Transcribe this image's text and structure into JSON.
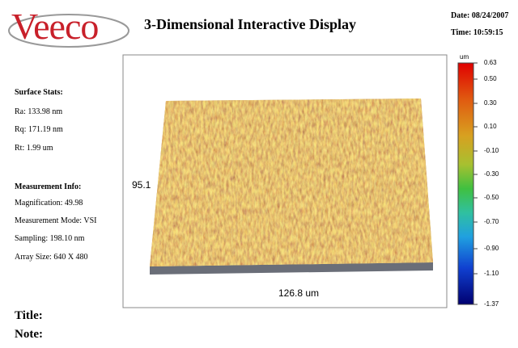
{
  "header": {
    "logo": "Veeco",
    "title": "3-Dimensional Interactive Display",
    "date": "Date: 08/24/2007",
    "time": "Time: 10:59:15"
  },
  "surface_stats": {
    "heading": "Surface Stats:",
    "items": [
      "Ra: 133.98 nm",
      "Rq: 171.19 nm",
      "Rt: 1.99 um"
    ]
  },
  "measurement_info": {
    "heading": "Measurement Info:",
    "items": [
      "Magnification: 49.98",
      "Measurement Mode: VSI",
      "Sampling: 198.10 nm",
      "Array Size: 640 X 480"
    ]
  },
  "plot": {
    "y_label": "95.1",
    "x_label": "126.8 um"
  },
  "colorbar": {
    "unit": "um",
    "labels": [
      "0.63",
      "0.50",
      "0.30",
      "0.10",
      "-0.10",
      "-0.30",
      "-0.50",
      "-0.70",
      "-0.90",
      "-1.10",
      "-1.37"
    ]
  },
  "footer": {
    "title": "Title:",
    "note": "Note:"
  }
}
